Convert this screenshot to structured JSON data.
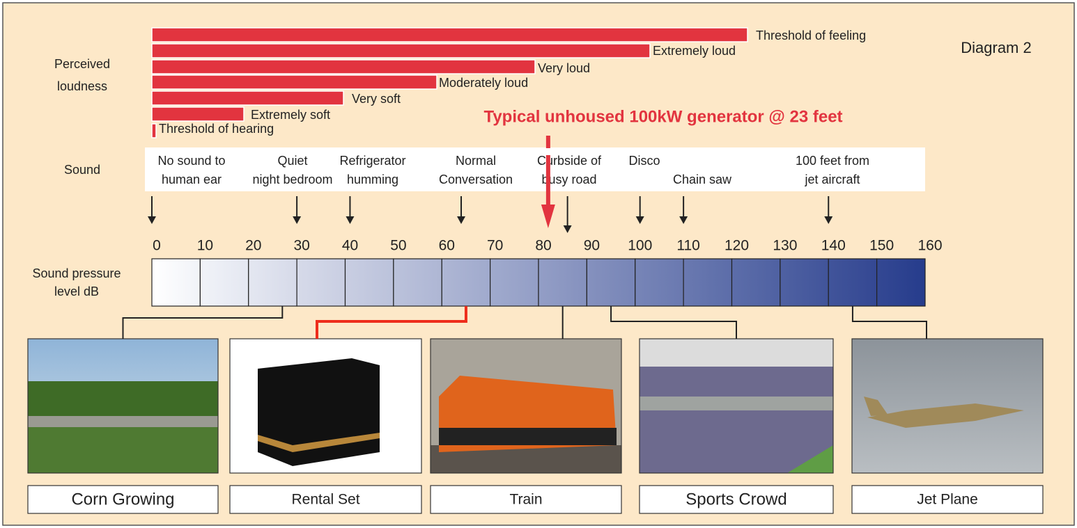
{
  "diagram_label": "Diagram 2",
  "row_labels": {
    "loudness": [
      "Perceived",
      "loudness"
    ],
    "sound": "Sound",
    "spl": [
      "Sound pressure",
      "level dB"
    ]
  },
  "loudness": [
    "Threshold of feeling",
    "Extremely loud",
    "Very loud",
    "Moderately loud",
    "Very soft",
    "Extremely soft",
    "Threshold of hearing"
  ],
  "highlight": {
    "text": "Typical unhoused 100kW generator @ 23 feet",
    "db": 82
  },
  "sounds": [
    {
      "lines": [
        "No sound to",
        "human ear"
      ],
      "db": 0
    },
    {
      "lines": [
        "Quiet",
        "night bedroom"
      ],
      "db": 30
    },
    {
      "lines": [
        "Refrigerator",
        "humming"
      ],
      "db": 41
    },
    {
      "lines": [
        "Normal",
        "Conversation"
      ],
      "db": 64
    },
    {
      "lines": [
        "Curbside of",
        "busy road"
      ],
      "db": 86
    },
    {
      "lines": [
        "Disco"
      ],
      "db": 101
    },
    {
      "lines": [
        "Chain saw"
      ],
      "db": 110
    },
    {
      "lines": [
        "100 feet from",
        "jet aircraft"
      ],
      "db": 140
    }
  ],
  "scale": {
    "ticks": [
      0,
      10,
      20,
      30,
      40,
      50,
      60,
      70,
      80,
      90,
      100,
      110,
      120,
      130,
      140,
      150,
      160
    ]
  },
  "photos": [
    {
      "caption": "Corn Growing",
      "db": 27
    },
    {
      "caption": "Rental Set",
      "db": 65
    },
    {
      "caption": "Train",
      "db": 85
    },
    {
      "caption": "Sports Crowd",
      "db": 95
    },
    {
      "caption": "Jet Plane",
      "db": 145
    }
  ]
}
